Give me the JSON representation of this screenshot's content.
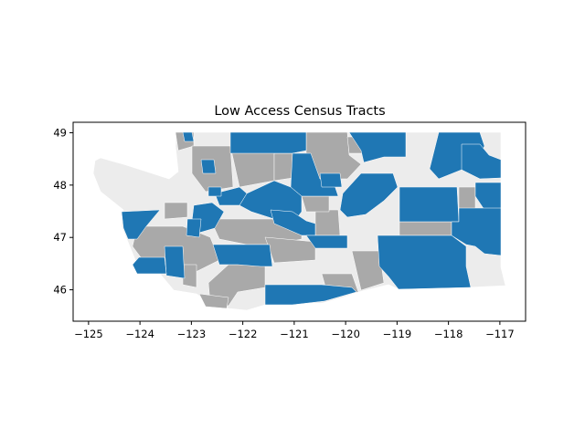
{
  "title": "Low Access Census Tracts",
  "x_ticks": [
    "−125",
    "−124",
    "−123",
    "−122",
    "−121",
    "−120",
    "−119",
    "−118",
    "−117"
  ],
  "y_ticks": [
    "46",
    "47",
    "48",
    "49"
  ],
  "colors": {
    "low_access": "#1f77b4",
    "partial": "#a9a9a9",
    "not_low_access": "#ececec",
    "edges": "#ffffff",
    "axes": "#000000"
  },
  "chart_data": {
    "type": "map",
    "title": "Low Access Census Tracts",
    "xlim": [
      -125.3,
      -116.5
    ],
    "ylim": [
      45.4,
      49.2
    ],
    "x_ticks": [
      -125,
      -124,
      -123,
      -122,
      -121,
      -120,
      -119,
      -118,
      -117
    ],
    "y_ticks": [
      46,
      47,
      48,
      49
    ]
  }
}
